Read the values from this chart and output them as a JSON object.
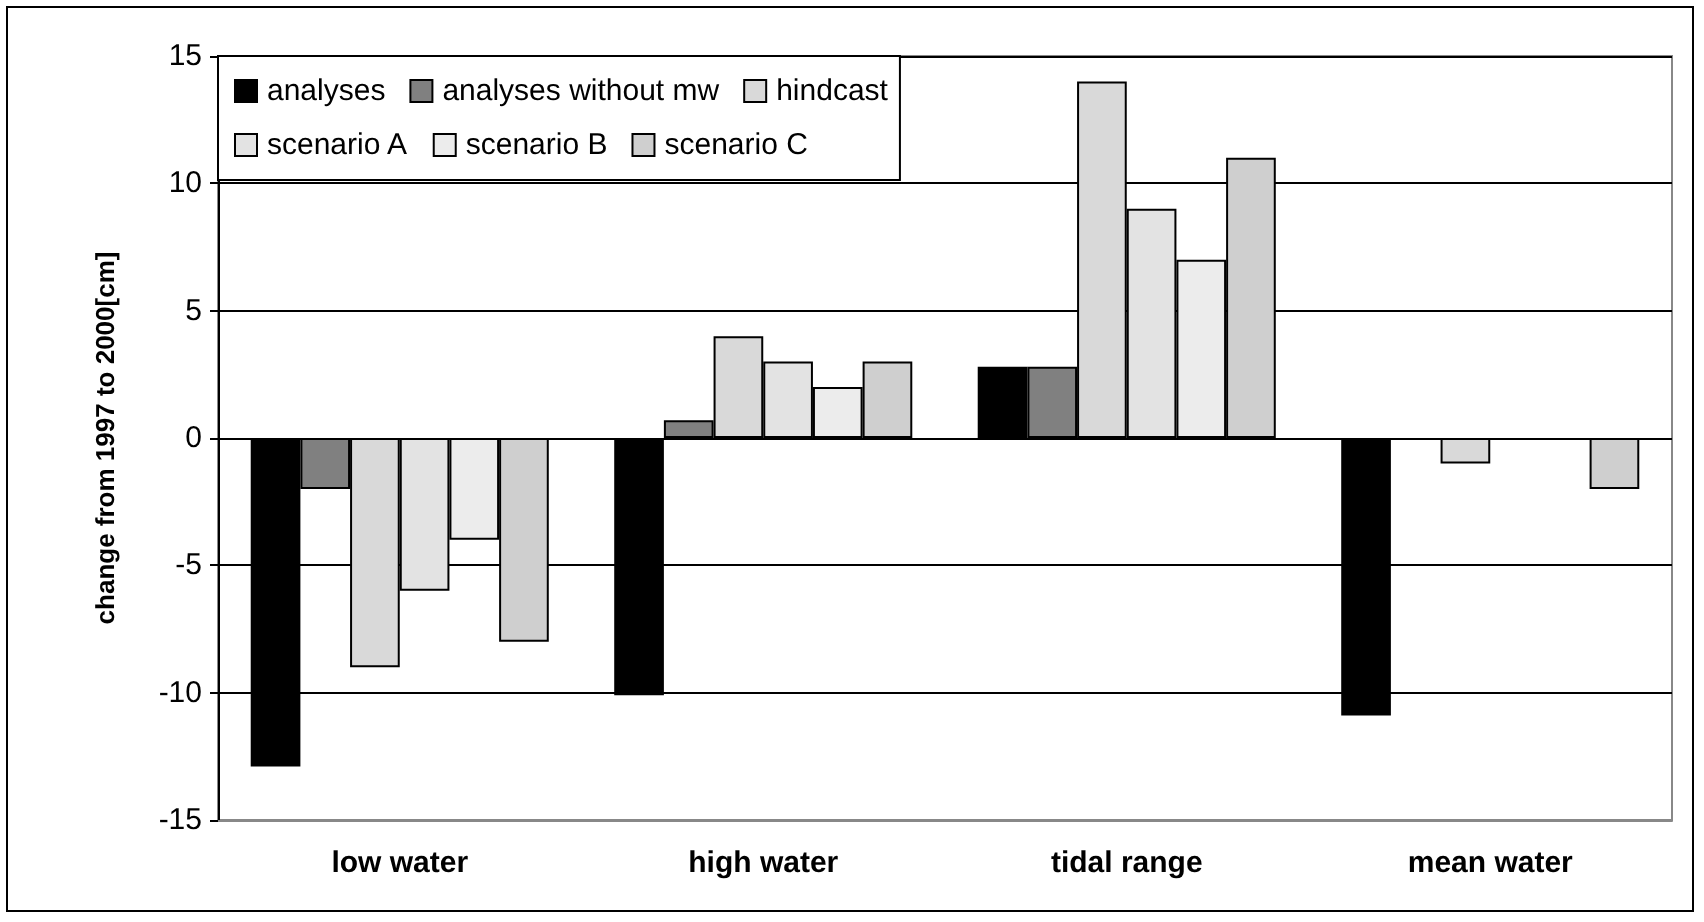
{
  "chart_data": {
    "type": "bar",
    "ylabel": "change from 1997 to 2000[cm]",
    "categories": [
      "low water",
      "high water",
      "tidal range",
      "mean water"
    ],
    "series": [
      {
        "name": "analyses",
        "color": "#000000",
        "values": [
          -12.9,
          -10.1,
          2.8,
          -10.9
        ]
      },
      {
        "name": "analyses without mw",
        "color": "#808080",
        "values": [
          -2,
          0.7,
          2.8,
          null
        ]
      },
      {
        "name": "hindcast",
        "color": "#d9d9d9",
        "values": [
          -9,
          4,
          14,
          -1
        ]
      },
      {
        "name": "scenario A",
        "color": "#e3e3e3",
        "values": [
          -6,
          3,
          9,
          null
        ]
      },
      {
        "name": "scenario B",
        "color": "#ececec",
        "values": [
          -4,
          2,
          7,
          null
        ]
      },
      {
        "name": "scenario C",
        "color": "#cfcfcf",
        "values": [
          -8,
          3,
          11,
          -2
        ]
      }
    ],
    "ylim": [
      -15,
      15
    ],
    "yticks": [
      -15,
      -10,
      -5,
      0,
      5,
      10,
      15
    ],
    "grid": "y",
    "legend": "top left"
  }
}
